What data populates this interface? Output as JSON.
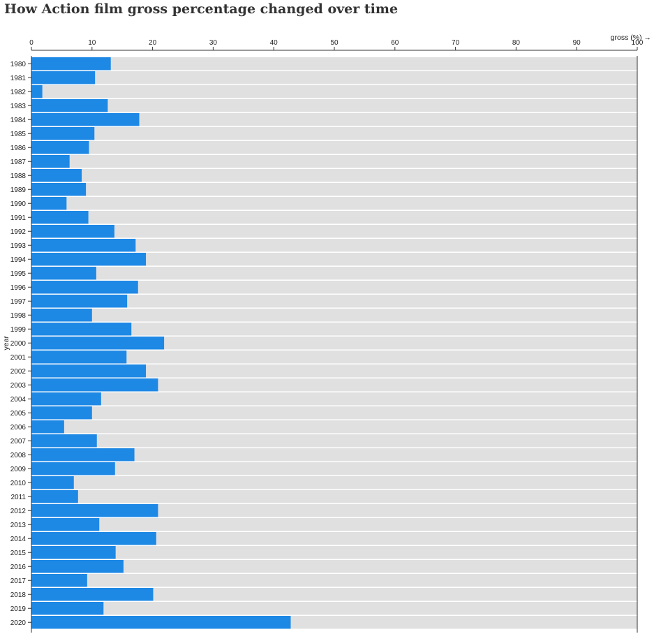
{
  "chart_data": {
    "type": "bar",
    "orientation": "horizontal",
    "title": "How Action film gross percentage changed over time",
    "xlabel": "gross (%) →",
    "ylabel": "year",
    "xlim": [
      0,
      100
    ],
    "xticks": [
      0,
      10,
      20,
      30,
      40,
      50,
      60,
      70,
      80,
      90,
      100
    ],
    "background_bar_value": 100,
    "colors": {
      "bar": "#1e88e5",
      "background": "#e0e0e0",
      "axis": "#333333"
    },
    "categories": [
      "1980",
      "1981",
      "1982",
      "1983",
      "1984",
      "1985",
      "1986",
      "1987",
      "1988",
      "1989",
      "1990",
      "1991",
      "1992",
      "1993",
      "1994",
      "1995",
      "1996",
      "1997",
      "1998",
      "1999",
      "2000",
      "2001",
      "2002",
      "2003",
      "2004",
      "2005",
      "2006",
      "2007",
      "2008",
      "2009",
      "2010",
      "2011",
      "2012",
      "2013",
      "2014",
      "2015",
      "2016",
      "2017",
      "2018",
      "2019",
      "2020"
    ],
    "values": [
      13.1,
      10.5,
      1.8,
      12.6,
      17.8,
      10.4,
      9.5,
      6.3,
      8.3,
      9.0,
      5.8,
      9.4,
      13.7,
      17.2,
      18.9,
      10.7,
      17.6,
      15.8,
      10.0,
      16.5,
      21.9,
      15.7,
      18.9,
      20.9,
      11.5,
      10.0,
      5.4,
      10.8,
      17.0,
      13.8,
      7.0,
      7.7,
      20.9,
      11.2,
      20.6,
      13.9,
      15.2,
      9.2,
      20.1,
      11.9,
      42.8
    ]
  }
}
